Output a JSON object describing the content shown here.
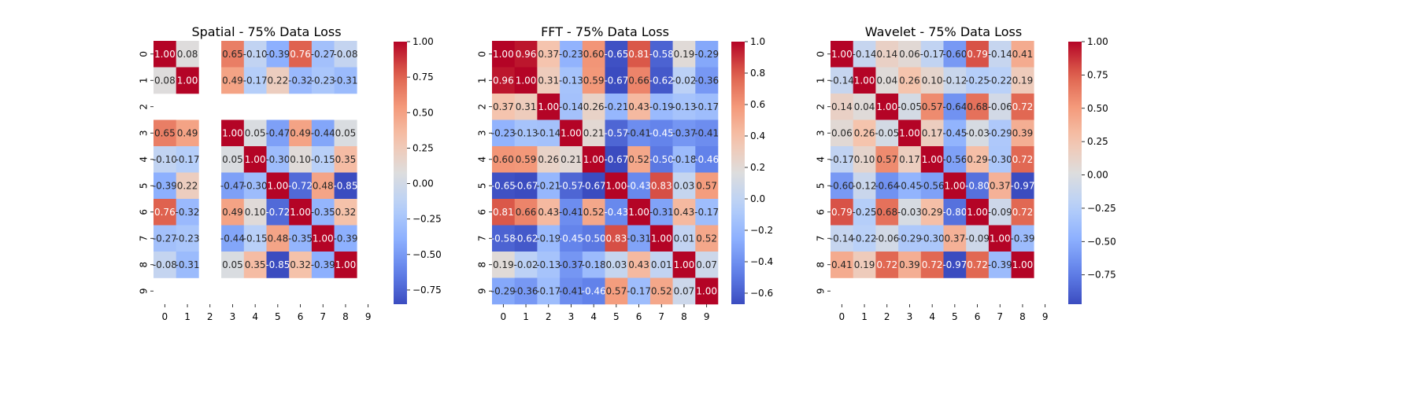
{
  "chart_data": [
    {
      "type": "heatmap",
      "title": "Spatial - 75% Data Loss",
      "x_tick_labels": [
        "0",
        "1",
        "2",
        "3",
        "4",
        "5",
        "6",
        "7",
        "8",
        "9"
      ],
      "y_tick_labels": [
        "0",
        "1",
        "2",
        "3",
        "4",
        "5",
        "6",
        "7",
        "8",
        "9"
      ],
      "colormap": "coolwarm",
      "vmin": -0.85,
      "vmax": 1.0,
      "colorbar_ticks": [
        "1.00",
        "0.75",
        "0.50",
        "0.25",
        "0.00",
        "−0.25",
        "−0.50",
        "−0.75"
      ],
      "colorbar_tick_values": [
        1.0,
        0.75,
        0.5,
        0.25,
        0.0,
        -0.25,
        -0.5,
        -0.75
      ],
      "values": [
        [
          1.0,
          0.08,
          null,
          0.65,
          -0.1,
          -0.39,
          0.76,
          -0.27,
          -0.08,
          null
        ],
        [
          0.08,
          1.0,
          null,
          0.49,
          -0.17,
          0.22,
          -0.32,
          -0.23,
          -0.31,
          null
        ],
        [
          null,
          null,
          null,
          null,
          null,
          null,
          null,
          null,
          null,
          null
        ],
        [
          0.65,
          0.49,
          null,
          1.0,
          0.05,
          -0.47,
          0.49,
          -0.44,
          0.05,
          null
        ],
        [
          -0.1,
          -0.17,
          null,
          0.05,
          1.0,
          -0.3,
          0.1,
          -0.15,
          0.35,
          null
        ],
        [
          -0.39,
          0.22,
          null,
          -0.47,
          -0.3,
          1.0,
          -0.72,
          0.48,
          -0.85,
          null
        ],
        [
          0.76,
          -0.32,
          null,
          0.49,
          0.1,
          -0.72,
          1.0,
          -0.35,
          0.32,
          null
        ],
        [
          -0.27,
          -0.23,
          null,
          -0.44,
          -0.15,
          0.48,
          -0.35,
          1.0,
          -0.39,
          null
        ],
        [
          -0.08,
          -0.31,
          null,
          0.05,
          0.35,
          -0.85,
          0.32,
          -0.39,
          1.0,
          null
        ],
        [
          null,
          null,
          null,
          null,
          null,
          null,
          null,
          null,
          null,
          null
        ]
      ]
    },
    {
      "type": "heatmap",
      "title": "FFT - 75% Data Loss",
      "x_tick_labels": [
        "0",
        "1",
        "2",
        "3",
        "4",
        "5",
        "6",
        "7",
        "8",
        "9"
      ],
      "y_tick_labels": [
        "0",
        "1",
        "2",
        "3",
        "4",
        "5",
        "6",
        "7",
        "8",
        "9"
      ],
      "colormap": "coolwarm",
      "vmin": -0.67,
      "vmax": 1.0,
      "colorbar_ticks": [
        "1.0",
        "0.8",
        "0.6",
        "0.4",
        "0.2",
        "0.0",
        "−0.2",
        "−0.4",
        "−0.6"
      ],
      "colorbar_tick_values": [
        1.0,
        0.8,
        0.6,
        0.4,
        0.2,
        0.0,
        -0.2,
        -0.4,
        -0.6
      ],
      "values": [
        [
          1.0,
          0.96,
          0.37,
          -0.23,
          0.6,
          -0.65,
          0.81,
          -0.58,
          0.19,
          -0.29
        ],
        [
          0.96,
          1.0,
          0.31,
          -0.13,
          0.59,
          -0.67,
          0.66,
          -0.62,
          -0.02,
          -0.36
        ],
        [
          0.37,
          0.31,
          1.0,
          -0.14,
          0.26,
          -0.21,
          0.43,
          -0.19,
          -0.13,
          -0.17
        ],
        [
          -0.23,
          -0.13,
          -0.14,
          1.0,
          0.21,
          -0.57,
          -0.41,
          -0.45,
          -0.37,
          -0.41
        ],
        [
          0.6,
          0.59,
          0.26,
          0.21,
          1.0,
          -0.67,
          0.52,
          -0.5,
          -0.18,
          -0.46
        ],
        [
          -0.65,
          -0.67,
          -0.21,
          -0.57,
          -0.67,
          1.0,
          -0.43,
          0.83,
          0.03,
          0.57
        ],
        [
          0.81,
          0.66,
          0.43,
          -0.41,
          0.52,
          -0.43,
          1.0,
          -0.31,
          0.43,
          -0.17
        ],
        [
          -0.58,
          -0.62,
          -0.19,
          -0.45,
          -0.5,
          0.83,
          -0.31,
          1.0,
          0.01,
          0.52
        ],
        [
          0.19,
          -0.02,
          -0.13,
          -0.37,
          -0.18,
          0.03,
          0.43,
          0.01,
          1.0,
          0.07
        ],
        [
          -0.29,
          -0.36,
          -0.17,
          -0.41,
          -0.46,
          0.57,
          -0.17,
          0.52,
          0.07,
          1.0
        ]
      ]
    },
    {
      "type": "heatmap",
      "title": "Wavelet - 75% Data Loss",
      "x_tick_labels": [
        "0",
        "1",
        "2",
        "3",
        "4",
        "5",
        "6",
        "7",
        "8",
        "9"
      ],
      "y_tick_labels": [
        "0",
        "1",
        "2",
        "3",
        "4",
        "5",
        "6",
        "7",
        "8",
        "9"
      ],
      "colormap": "coolwarm",
      "vmin": -0.97,
      "vmax": 1.0,
      "colorbar_ticks": [
        "1.00",
        "0.75",
        "0.50",
        "0.25",
        "0.00",
        "−0.25",
        "−0.50",
        "−0.75"
      ],
      "colorbar_tick_values": [
        1.0,
        0.75,
        0.5,
        0.25,
        0.0,
        -0.25,
        -0.5,
        -0.75
      ],
      "values": [
        [
          1.0,
          -0.14,
          0.14,
          0.06,
          -0.17,
          -0.6,
          0.79,
          -0.14,
          0.41,
          null
        ],
        [
          -0.14,
          1.0,
          0.04,
          0.26,
          0.1,
          -0.12,
          -0.25,
          -0.22,
          0.19,
          null
        ],
        [
          0.14,
          0.04,
          1.0,
          -0.05,
          0.57,
          -0.64,
          0.68,
          -0.06,
          0.72,
          null
        ],
        [
          0.06,
          0.26,
          -0.05,
          1.0,
          0.17,
          -0.45,
          -0.03,
          -0.29,
          0.39,
          null
        ],
        [
          -0.17,
          0.1,
          0.57,
          0.17,
          1.0,
          -0.56,
          0.29,
          -0.3,
          0.72,
          null
        ],
        [
          -0.6,
          -0.12,
          -0.64,
          -0.45,
          -0.56,
          1.0,
          -0.8,
          0.37,
          -0.97,
          null
        ],
        [
          0.79,
          -0.25,
          0.68,
          -0.03,
          0.29,
          -0.8,
          1.0,
          -0.09,
          0.72,
          null
        ],
        [
          -0.14,
          -0.22,
          -0.06,
          -0.29,
          -0.3,
          0.37,
          -0.09,
          1.0,
          -0.39,
          null
        ],
        [
          0.41,
          0.19,
          0.72,
          0.39,
          0.72,
          -0.97,
          0.72,
          -0.39,
          1.0,
          null
        ],
        [
          null,
          null,
          null,
          null,
          null,
          null,
          null,
          null,
          null,
          null
        ]
      ]
    }
  ]
}
